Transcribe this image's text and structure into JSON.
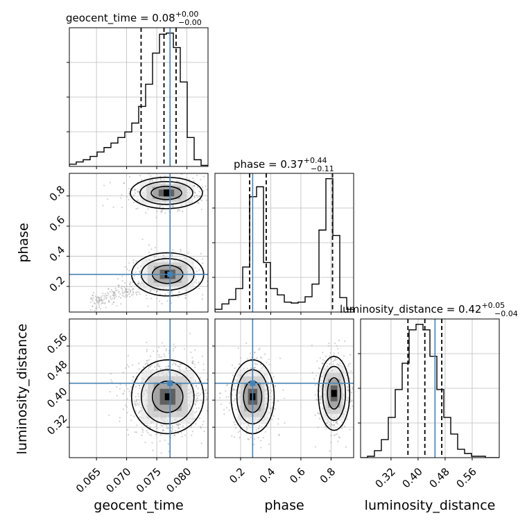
{
  "chart_data": {
    "type": "corner",
    "parameters": [
      "geocent_time",
      "phase",
      "luminosity_distance"
    ],
    "injected_values": {
      "geocent_time": 0.0772,
      "phase": 0.28,
      "luminosity_distance": 0.45
    },
    "colors": {
      "truth": "#4682b4",
      "hist": "#000000",
      "grid": "#bdbdbd"
    },
    "titles": [
      {
        "param": "geocent_time",
        "text": "geocent_time = 0.08",
        "plus": "+0.00",
        "minus": "−0.00"
      },
      {
        "param": "phase",
        "text": "phase = 0.37",
        "plus": "+0.44",
        "minus": "−0.11"
      },
      {
        "param": "luminosity_distance",
        "text": "luminosity_distance = 0.42",
        "plus": "+0.05",
        "minus": "−0.04"
      }
    ],
    "axes": {
      "geocent_time": {
        "range": [
          0.0605,
          0.0835
        ],
        "ticks": [
          0.065,
          0.07,
          0.075,
          0.08
        ],
        "tick_labels": [
          "0.065",
          "0.070",
          "0.075",
          "0.080"
        ],
        "label": "geocent_time"
      },
      "phase": {
        "range": [
          0.03,
          0.95
        ],
        "ticks": [
          0.2,
          0.4,
          0.6,
          0.8
        ],
        "tick_labels": [
          "0.2",
          "0.4",
          "0.6",
          "0.8"
        ],
        "label": "phase"
      },
      "luminosity_distance": {
        "range": [
          0.23,
          0.64
        ],
        "ticks": [
          0.32,
          0.4,
          0.48,
          0.56
        ],
        "tick_labels": [
          "0.32",
          "0.40",
          "0.48",
          "0.56"
        ],
        "label": "luminosity_distance"
      }
    },
    "histograms": {
      "geocent_time": {
        "bin_edges": [
          0.0605,
          0.06165,
          0.0628,
          0.06395,
          0.0651,
          0.06625,
          0.0674,
          0.06855,
          0.0697,
          0.07085,
          0.072,
          0.07315,
          0.0743,
          0.07545,
          0.0766,
          0.07775,
          0.0789,
          0.08005,
          0.0812,
          0.08235,
          0.0835
        ],
        "counts": [
          2,
          4,
          6,
          9,
          13,
          17,
          21,
          26,
          31,
          39,
          54,
          74,
          102,
          119,
          120,
          107,
          76,
          26,
          6,
          1
        ],
        "quantiles": [
          0.0724,
          0.0762,
          0.0782
        ]
      },
      "phase": {
        "bin_edges": [
          0.03,
          0.076,
          0.122,
          0.168,
          0.214,
          0.26,
          0.306,
          0.352,
          0.398,
          0.444,
          0.49,
          0.536,
          0.582,
          0.628,
          0.674,
          0.72,
          0.766,
          0.812,
          0.858,
          0.904,
          0.95
        ],
        "counts": [
          3,
          9,
          14,
          26,
          50,
          128,
          139,
          55,
          26,
          19,
          11,
          10,
          11,
          17,
          31,
          91,
          148,
          85,
          16,
          3
        ],
        "quantiles": [
          0.26,
          0.37,
          0.81
        ]
      },
      "luminosity_distance": {
        "bin_edges": [
          0.23,
          0.2505,
          0.271,
          0.2915,
          0.312,
          0.3325,
          0.353,
          0.3735,
          0.394,
          0.4145,
          0.435,
          0.4555,
          0.476,
          0.4965,
          0.517,
          0.5375,
          0.558,
          0.5785,
          0.599,
          0.6195,
          0.64
        ],
        "counts": [
          0,
          1,
          5,
          13,
          29,
          49,
          68,
          92,
          96,
          92,
          73,
          49,
          29,
          17,
          6,
          3,
          1,
          1,
          0,
          0
        ],
        "quantiles": [
          0.37,
          0.42,
          0.47
        ]
      }
    }
  }
}
